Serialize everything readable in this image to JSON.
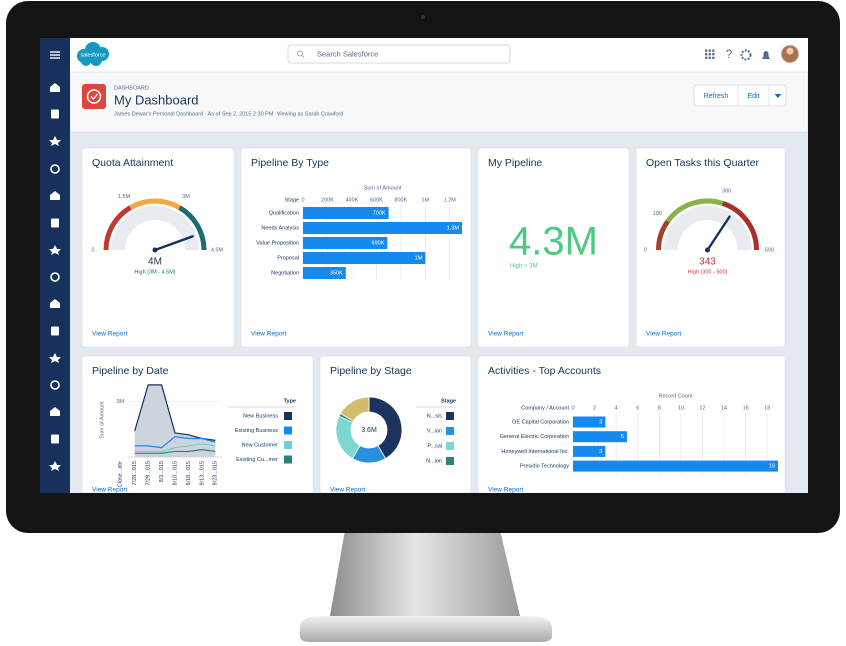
{
  "app": {
    "logo": "salesforce",
    "search_placeholder": "Search Salesforce",
    "help_icon": "?"
  },
  "header": {
    "section": "DASHBOARD",
    "title": "My Dashboard",
    "subtitle": "James Dewar's Personal Dashboard · As of Sep 2, 2015 2:30 PM ·Viewing as Sarah Crawford",
    "buttons": [
      "Refresh",
      "Edit"
    ]
  },
  "cards": [
    {
      "title": "Quota Attainment",
      "link": "View Report",
      "chart": {
        "type": "gauge",
        "ticks": [
          {
            "value": 0,
            "label": "0"
          },
          {
            "value": 1500000,
            "label": "1.5M"
          },
          {
            "value": 3000000,
            "label": "3M"
          },
          {
            "value": 4500000,
            "label": "4.5M"
          }
        ],
        "band_colors": [
          "#c23934",
          "#f4a73c",
          "#1b6b72"
        ],
        "value": 4000000,
        "value_label": "4M",
        "value_color": "#16325c",
        "caption": "High (3M - 4.5M)",
        "caption_color": "#1b6b72"
      }
    },
    {
      "title": "Pipeline By Type",
      "link": "View Report",
      "chart": {
        "type": "hbar",
        "x_title": "Sum of Amount",
        "y_title": "Stage",
        "categories": [
          "Qualification",
          "Needs Analysis",
          "Value Proposition",
          "Proposal",
          "Negotiation"
        ],
        "values": [
          700000,
          1300000,
          690000,
          1000000,
          350000
        ],
        "value_labels": [
          "700K",
          "1.3M",
          "690K",
          "1M",
          "350K"
        ],
        "xlim": [
          0,
          1300000
        ],
        "xticks": [
          0,
          {
            "value": 200000,
            "label": "200K"
          },
          {
            "value": 400000,
            "label": "400K"
          },
          {
            "value": 600000,
            "label": "600K"
          },
          {
            "value": 800000,
            "label": "800K"
          },
          {
            "value": 1000000,
            "label": "1M"
          },
          {
            "value": 1200000,
            "label": "1.2M"
          }
        ],
        "color": "#1589ee"
      }
    },
    {
      "title": "My Pipeline",
      "link": "View Report",
      "chart": {
        "type": "metric",
        "value": "4.3M",
        "caption": "High > 3M",
        "color": "#4bca81"
      }
    },
    {
      "title": "Open Tasks this Quarter",
      "link": "View Report",
      "chart": {
        "type": "gauge",
        "ticks": [
          0,
          100,
          300,
          500
        ],
        "band_colors": [
          "#a6402c",
          "#8ab24a",
          "#a8312b"
        ],
        "value": 343,
        "value_color": "#c23934",
        "caption": "High (300 - 500)",
        "caption_color": "#c23934"
      }
    },
    {
      "title": "Pipeline by Date",
      "link": "View Report",
      "chart": {
        "type": "area",
        "y_title": "Sum of Amount",
        "x_title": "Close...ate",
        "categories": [
          "7/28...015",
          "7/29...015",
          "8/3...015",
          "8/10...015",
          "8/18...015",
          "9/13...015",
          "9/23...015"
        ],
        "ylim": [
          0,
          4000000
        ],
        "yticks": [
          {
            "value": 3000000,
            "label": "3M"
          }
        ],
        "legend_title": "Type",
        "series": [
          {
            "name": "New Business",
            "color": "#16325c",
            "fill": "#c5cdd8",
            "values": [
              1400000,
              3900000,
              3900000,
              1300000,
              1200000,
              1000000,
              900000
            ]
          },
          {
            "name": "Existing Business",
            "color": "#1589ee",
            "values": [
              600000,
              600000,
              500000,
              1100000,
              1000000,
              1000000,
              800000
            ]
          },
          {
            "name": "New Customer",
            "color": "#6fd1cd",
            "values": [
              300000,
              300000,
              300000,
              500000,
              600000,
              700000,
              600000
            ]
          },
          {
            "name": "Existing Cu...mer",
            "color": "#2f7f7a",
            "values": [
              200000,
              200000,
              200000,
              300000,
              300000,
              400000,
              300000
            ]
          }
        ]
      }
    },
    {
      "title": "Pipeline by Stage",
      "link": "View Report",
      "chart": {
        "type": "donut",
        "center_label": "3.6M",
        "legend_title": "Stage",
        "categories": [
          "N...sis",
          "V...ion",
          "P...sal",
          "N...ion",
          null
        ],
        "values": [
          1.5,
          0.6,
          0.85,
          0.05,
          0.6
        ],
        "colors": [
          "#1c3360",
          "#2a8fe0",
          "#7dd6d0",
          "#2f7f7a",
          "#d4bd6a"
        ]
      }
    },
    {
      "title": "Activities - Top Accounts",
      "link": "View Report",
      "chart": {
        "type": "hbar",
        "x_title": "Record Count",
        "y_title": "Company / Account",
        "categories": [
          "GE Capital Corporation",
          "General Electric Corporation",
          "Honeywell International Inc.",
          "Presidio Technology"
        ],
        "values": [
          3,
          5,
          3,
          19
        ],
        "xlim": [
          0,
          19
        ],
        "xticks": [
          0,
          2,
          4,
          6,
          8,
          10,
          12,
          14,
          16,
          18
        ],
        "color": "#1589ee"
      }
    }
  ]
}
